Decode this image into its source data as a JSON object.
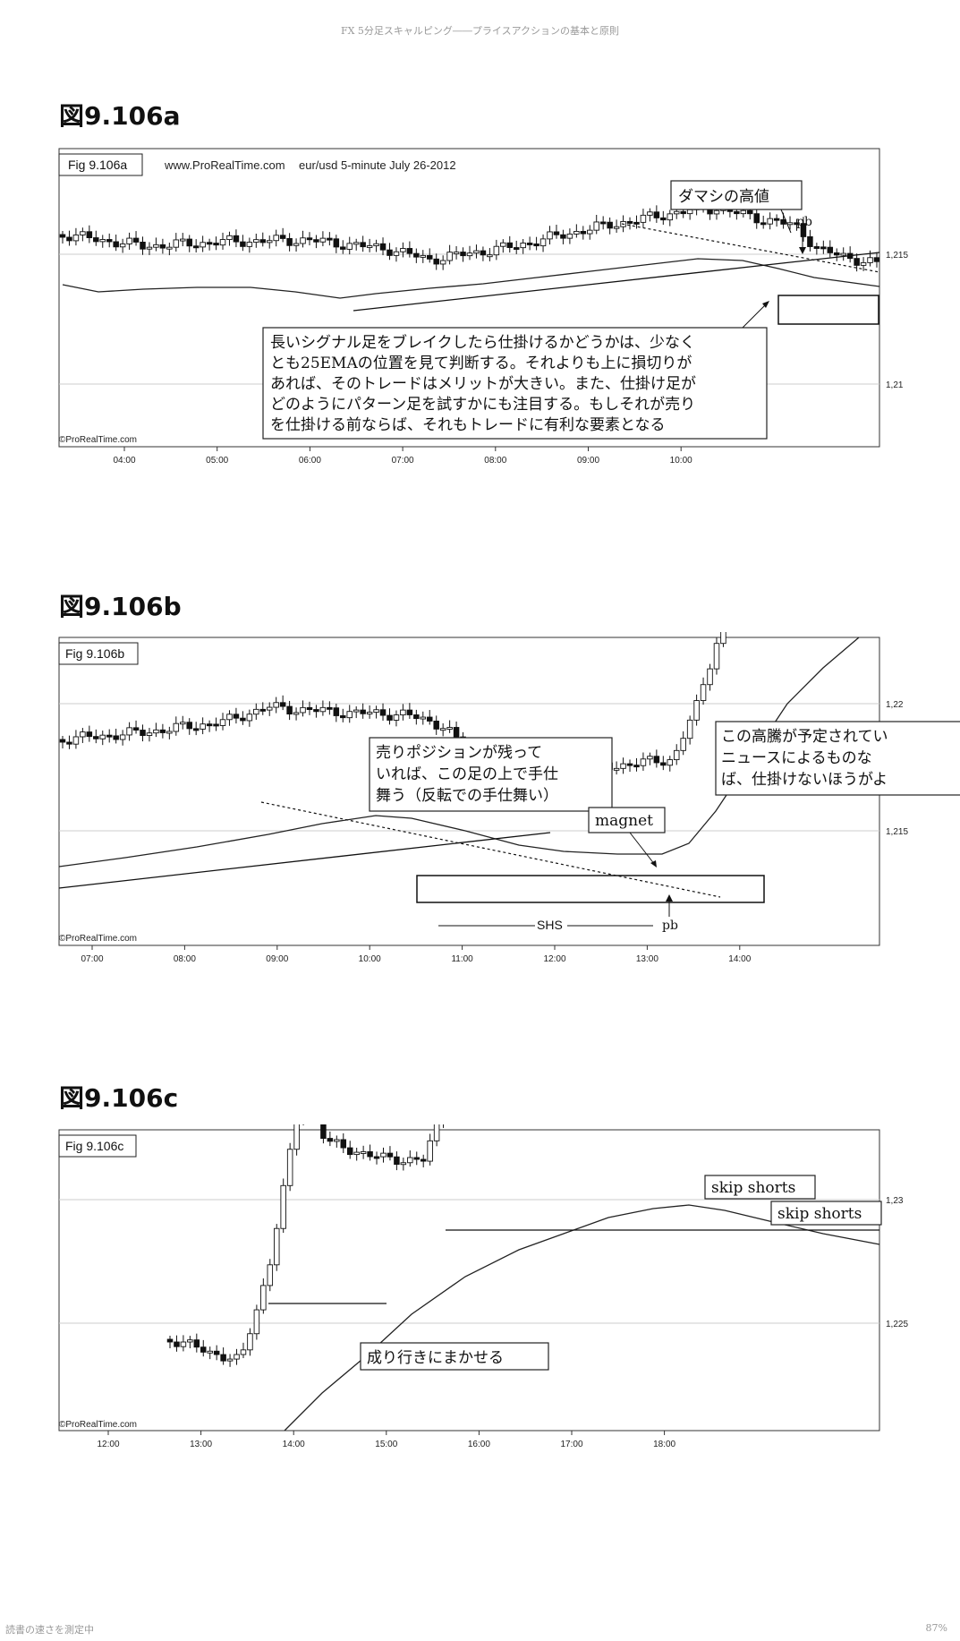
{
  "page": {
    "running_header": "FX 5分足スキャルピング――プライスアクションの基本と原則",
    "footer_left": "読書の速さを測定中",
    "footer_right": "87%"
  },
  "chart_data": [
    {
      "type": "candlestick",
      "figure_title": "図9.106a",
      "fig_label": "Fig 9.106a",
      "source": "www.ProRealTime.com",
      "instrument": "eur/usd  5-minute  July 26-2012",
      "copyright": "©ProRealTime.com",
      "x_ticks": [
        "04:00",
        "05:00",
        "06:00",
        "07:00",
        "08:00",
        "09:00",
        "10:00"
      ],
      "y_ticks": [
        "1,215",
        "1,21"
      ],
      "annotations": [
        {
          "id": "false-high",
          "text": "ダマシの高値"
        },
        {
          "id": "pb",
          "text": "pb"
        },
        {
          "id": "main-note",
          "lines": [
            "長いシグナル足をブレイクしたら仕掛けるかどうかは、少なく",
            "とも25EMAの位置を見て判断する。それよりも上に損切りが",
            "あれば、そのトレードはメリットが大きい。また、仕掛け足が",
            "どのようにパターン足を試すかにも注目する。もしそれが売り",
            "を仕掛ける前ならば、それもトレードに有利な要素となる"
          ]
        }
      ]
    },
    {
      "type": "candlestick",
      "figure_title": "図9.106b",
      "fig_label": "Fig 9.106b",
      "copyright": "©ProRealTime.com",
      "x_ticks": [
        "07:00",
        "08:00",
        "09:00",
        "10:00",
        "11:00",
        "12:00",
        "13:00",
        "14:00"
      ],
      "y_ticks": [
        "1,22",
        "1,215"
      ],
      "annotations": [
        {
          "id": "left-note",
          "lines": [
            "売りポジションが残って",
            "いれば、この足の上で手仕",
            "舞う（反転での手仕舞い）"
          ]
        },
        {
          "id": "magnet",
          "text": "magnet"
        },
        {
          "id": "right-note",
          "lines": [
            "この高騰が予定されてい",
            "ニュースによるものな",
            "ば、仕掛けないほうがよ"
          ]
        },
        {
          "id": "shs",
          "text": "SHS"
        },
        {
          "id": "pb",
          "text": "pb"
        }
      ]
    },
    {
      "type": "candlestick",
      "figure_title": "図9.106c",
      "fig_label": "Fig 9.106c",
      "copyright": "©ProRealTime.com",
      "x_ticks": [
        "12:00",
        "13:00",
        "14:00",
        "15:00",
        "16:00",
        "17:00",
        "18:00"
      ],
      "y_ticks": [
        "1,23",
        "1,225"
      ],
      "annotations": [
        {
          "id": "skip1",
          "text": "skip shorts"
        },
        {
          "id": "skip2",
          "text": "skip shorts"
        },
        {
          "id": "let-run",
          "text": "成り行きにまかせる"
        }
      ]
    }
  ]
}
